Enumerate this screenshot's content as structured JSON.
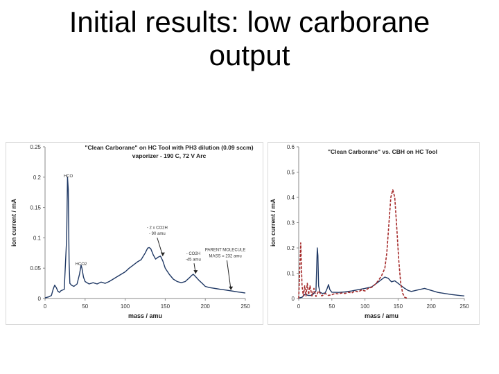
{
  "slide": {
    "title": "Initial results: low carborane\noutput"
  },
  "chart_data": [
    {
      "type": "line",
      "title": "\"Clean Carborane\" on HC Tool with PH3 dilution (0.09 sccm)",
      "subtitle": "vaporizer - 190 C, 72 V Arc",
      "xlabel": "mass / amu",
      "ylabel": "ion current / mA",
      "xlim": [
        0,
        250
      ],
      "ylim": [
        0,
        0.25
      ],
      "xticks": [
        "0",
        "50",
        "100",
        "150",
        "200",
        "250"
      ],
      "yticks": [
        "0",
        "0.05",
        "0.1",
        "0.15",
        "0.2",
        "0.25"
      ],
      "grid": false,
      "annotations": [
        {
          "text": "HCO",
          "x": 29,
          "y": 0.2
        },
        {
          "text": "HCO2",
          "x": 45,
          "y": 0.055
        },
        {
          "text": "- 2 x CO2H",
          "x": 140,
          "y": 0.115
        },
        {
          "text": "- 90 amu",
          "x": 140,
          "y": 0.105
        },
        {
          "text": "- CO2H",
          "x": 185,
          "y": 0.072
        },
        {
          "text": "-45 amu",
          "x": 185,
          "y": 0.062
        },
        {
          "text": "PARENT MOLECULE",
          "x": 225,
          "y": 0.078
        },
        {
          "text": "MASS = 232 amu",
          "x": 225,
          "y": 0.068
        }
      ],
      "series": [
        {
          "color": "#1f3864",
          "x": [
            0,
            5,
            8,
            10,
            12,
            14,
            16,
            18,
            20,
            24,
            27,
            28,
            29,
            30,
            31,
            33,
            36,
            40,
            43,
            45,
            46,
            48,
            50,
            55,
            60,
            65,
            70,
            75,
            80,
            85,
            90,
            95,
            100,
            105,
            110,
            115,
            120,
            125,
            128,
            130,
            132,
            135,
            138,
            141,
            144,
            147,
            150,
            155,
            160,
            165,
            170,
            175,
            180,
            183,
            185,
            188,
            192,
            197,
            200,
            205,
            210,
            215,
            220,
            225,
            230,
            235,
            240,
            245,
            250
          ],
          "y": [
            0.001,
            0.003,
            0.005,
            0.015,
            0.022,
            0.018,
            0.012,
            0.01,
            0.013,
            0.015,
            0.1,
            0.2,
            0.18,
            0.06,
            0.025,
            0.022,
            0.02,
            0.024,
            0.04,
            0.055,
            0.05,
            0.035,
            0.028,
            0.024,
            0.026,
            0.024,
            0.027,
            0.025,
            0.028,
            0.032,
            0.036,
            0.04,
            0.044,
            0.05,
            0.055,
            0.06,
            0.064,
            0.075,
            0.083,
            0.084,
            0.082,
            0.072,
            0.065,
            0.068,
            0.07,
            0.062,
            0.05,
            0.04,
            0.032,
            0.028,
            0.026,
            0.028,
            0.034,
            0.038,
            0.04,
            0.036,
            0.03,
            0.024,
            0.02,
            0.018,
            0.017,
            0.016,
            0.015,
            0.014,
            0.013,
            0.012,
            0.011,
            0.01,
            0.009
          ]
        }
      ]
    },
    {
      "type": "line",
      "title": "\"Clean Carborane\" vs. CBH on HC Tool",
      "xlabel": "mass / amu",
      "ylabel": "ion current / mA",
      "xlim": [
        0,
        250
      ],
      "ylim": [
        0,
        0.6
      ],
      "xticks": [
        "0",
        "50",
        "100",
        "150",
        "200",
        "250"
      ],
      "yticks": [
        "0",
        "0.1",
        "0.2",
        "0.3",
        "0.4",
        "0.5",
        "0.6"
      ],
      "grid": false,
      "series": [
        {
          "color": "#1f3864",
          "dash": false,
          "x": [
            0,
            5,
            10,
            14,
            20,
            26,
            28,
            29,
            30,
            32,
            36,
            40,
            43,
            45,
            47,
            50,
            60,
            70,
            80,
            90,
            100,
            110,
            115,
            120,
            125,
            130,
            135,
            140,
            145,
            150,
            155,
            160,
            165,
            170,
            180,
            190,
            200,
            210,
            220,
            230,
            240,
            250
          ],
          "y": [
            0.002,
            0.005,
            0.018,
            0.012,
            0.012,
            0.03,
            0.2,
            0.17,
            0.05,
            0.025,
            0.02,
            0.022,
            0.04,
            0.055,
            0.035,
            0.025,
            0.024,
            0.026,
            0.03,
            0.035,
            0.04,
            0.046,
            0.055,
            0.065,
            0.075,
            0.085,
            0.08,
            0.066,
            0.07,
            0.06,
            0.05,
            0.04,
            0.032,
            0.028,
            0.034,
            0.04,
            0.032,
            0.024,
            0.02,
            0.016,
            0.013,
            0.01
          ]
        },
        {
          "color": "#a52a2a",
          "dash": true,
          "x": [
            0,
            3,
            5,
            7,
            9,
            11,
            13,
            15,
            17,
            20,
            23,
            26,
            30,
            35,
            40,
            45,
            50,
            55,
            60,
            65,
            70,
            75,
            80,
            85,
            90,
            95,
            100,
            105,
            110,
            115,
            120,
            125,
            130,
            133,
            136,
            139,
            142,
            145,
            148,
            151,
            154,
            157,
            160,
            165
          ],
          "y": [
            0.0,
            0.22,
            0.05,
            0.01,
            0.05,
            0.01,
            0.06,
            0.015,
            0.05,
            0.01,
            0.04,
            0.008,
            0.03,
            0.01,
            0.02,
            0.012,
            0.015,
            0.02,
            0.018,
            0.022,
            0.02,
            0.025,
            0.022,
            0.03,
            0.026,
            0.034,
            0.03,
            0.04,
            0.044,
            0.055,
            0.07,
            0.09,
            0.12,
            0.18,
            0.29,
            0.4,
            0.43,
            0.4,
            0.28,
            0.15,
            0.06,
            0.02,
            0.005,
            0.0
          ]
        }
      ]
    }
  ]
}
